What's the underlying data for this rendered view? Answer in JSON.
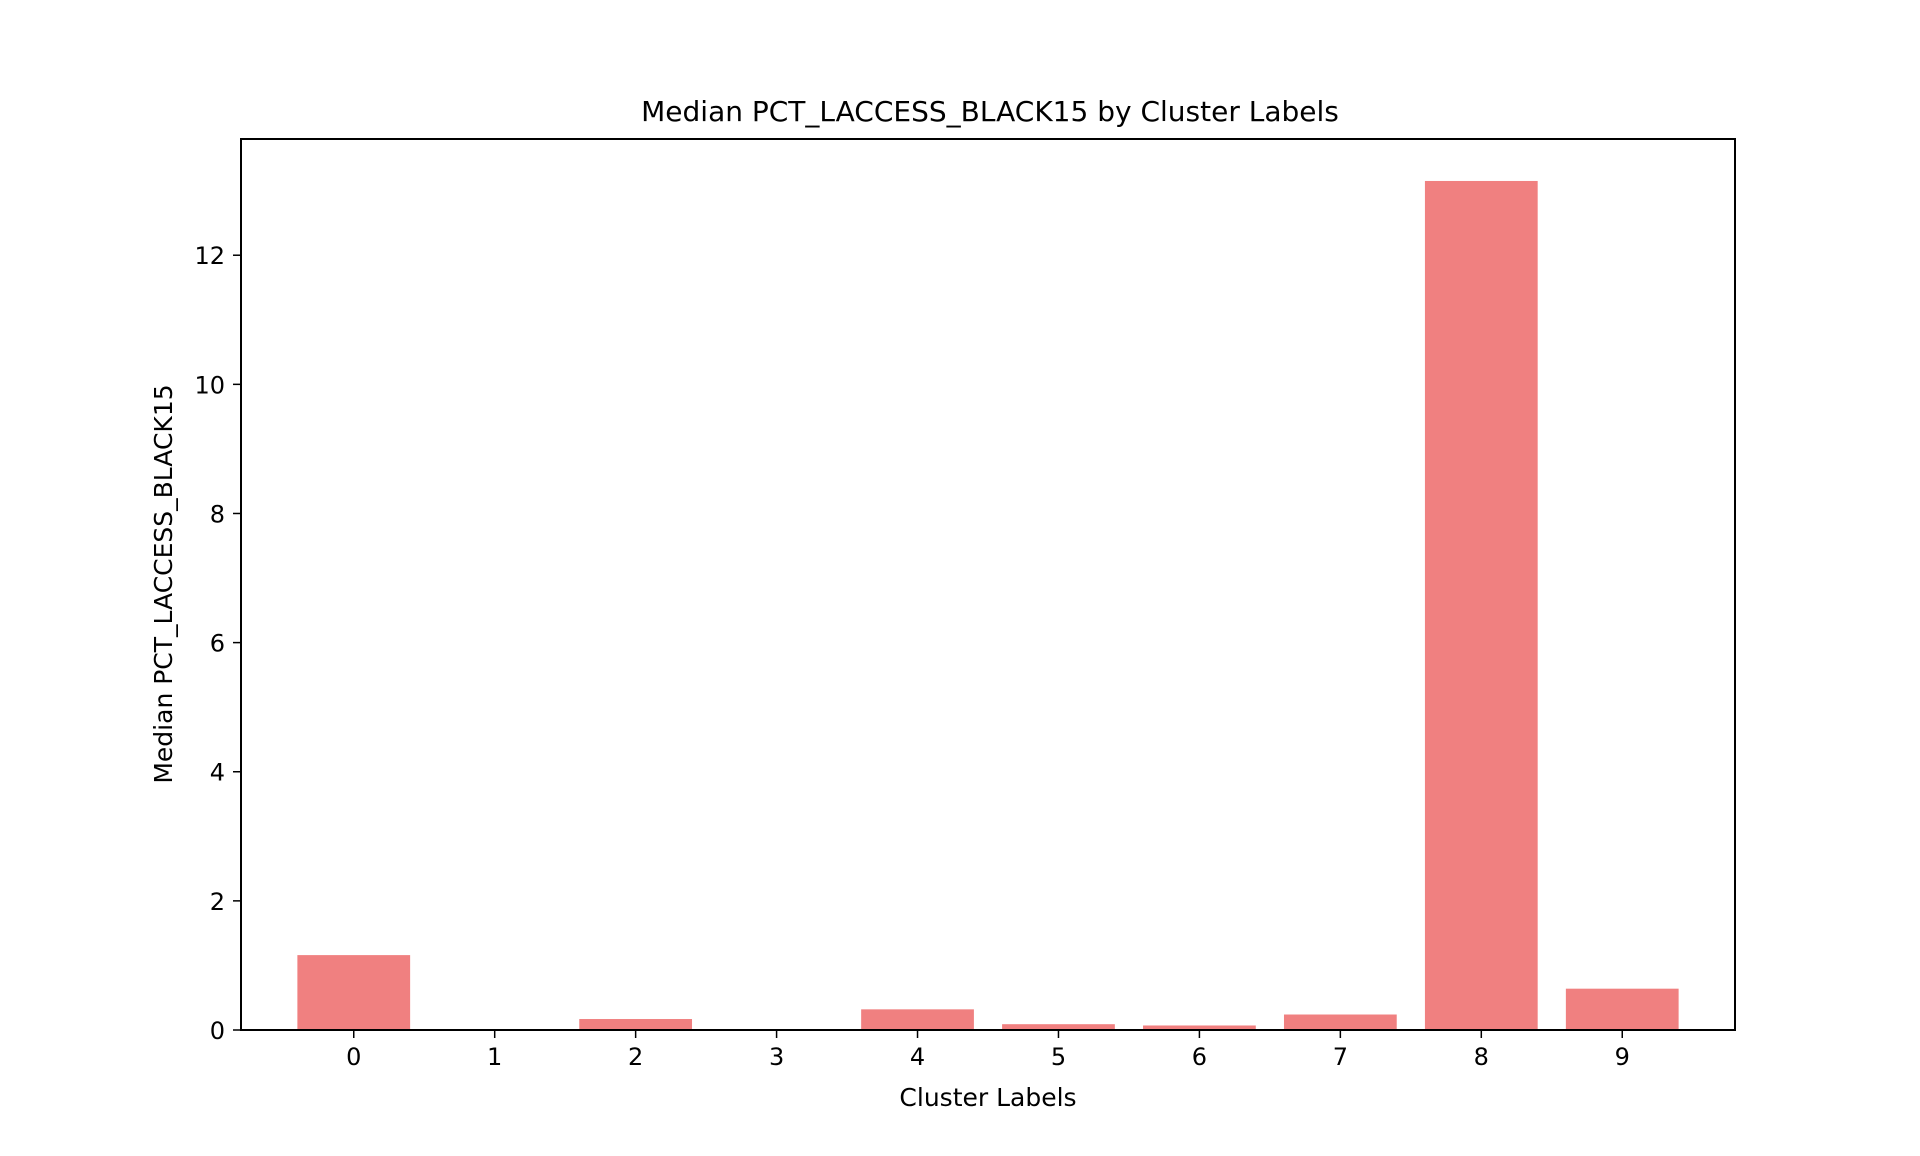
{
  "chart_data": {
    "type": "bar",
    "title": "Median PCT_LACCESS_BLACK15 by Cluster Labels",
    "xlabel": "Cluster Labels",
    "ylabel": "Median PCT_LACCESS_BLACK15",
    "categories": [
      "0",
      "1",
      "2",
      "3",
      "4",
      "5",
      "6",
      "7",
      "8",
      "9"
    ],
    "values": [
      1.16,
      0.0,
      0.17,
      0.0,
      0.32,
      0.09,
      0.07,
      0.24,
      13.15,
      0.64
    ],
    "ylim": [
      0,
      13.8
    ],
    "yticks": [
      0,
      2,
      4,
      6,
      8,
      10,
      12
    ],
    "grid": false,
    "bar_color": "#f08080",
    "axis_color": "#000000"
  }
}
